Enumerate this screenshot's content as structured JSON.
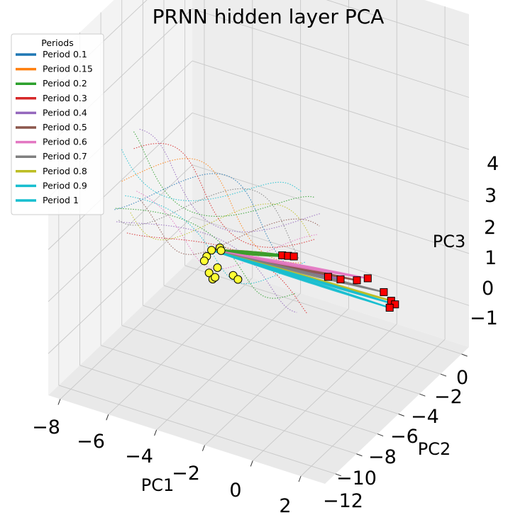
{
  "chart_data": {
    "type": "line",
    "projection": "3d",
    "title": "PRNN hidden layer PCA",
    "xlabel": "PC1",
    "ylabel": "PC2",
    "zlabel": "PC3",
    "x_ticks": [
      "−8",
      "−6",
      "−4",
      "−2",
      "0",
      "2"
    ],
    "y_ticks": [
      "0",
      "−2",
      "−4",
      "−6",
      "−8",
      "−10",
      "−12"
    ],
    "z_ticks": [
      "−1",
      "0",
      "1",
      "2",
      "3",
      "4"
    ],
    "grid": true,
    "legend": {
      "title": "Periods",
      "placement": "top-left",
      "entries": [
        {
          "label": "Period 0.1",
          "color": "#1f77b4"
        },
        {
          "label": "Period 0.15",
          "color": "#ff7f0e"
        },
        {
          "label": "Period 0.2",
          "color": "#2ca02c"
        },
        {
          "label": "Period 0.3",
          "color": "#d62728"
        },
        {
          "label": "Period 0.4",
          "color": "#9467bd"
        },
        {
          "label": "Period 0.5",
          "color": "#8c564b"
        },
        {
          "label": "Period 0.6",
          "color": "#e377c2"
        },
        {
          "label": "Period 0.7",
          "color": "#7f7f7f"
        },
        {
          "label": "Period 0.8",
          "color": "#bcbd22"
        },
        {
          "label": "Period 0.9",
          "color": "#17becf"
        },
        {
          "label": "Period 1",
          "color": "#17becf"
        }
      ]
    },
    "trajectories": [
      {
        "name": "Period 0.1",
        "color": "#1f77b4",
        "start": [
          -4.6,
          -5.6,
          0.3
        ],
        "end": [
          -0.7,
          -3.4,
          1.2
        ]
      },
      {
        "name": "Period 0.15",
        "color": "#ff7f0e",
        "start": [
          -4.6,
          -5.6,
          0.3
        ],
        "end": [
          -0.5,
          -3.5,
          1.2
        ]
      },
      {
        "name": "Period 0.2",
        "color": "#2ca02c",
        "start": [
          -4.6,
          -5.6,
          0.3
        ],
        "end": [
          -0.3,
          -3.6,
          1.2
        ]
      },
      {
        "name": "Period 0.3",
        "color": "#d62728",
        "start": [
          -4.6,
          -5.6,
          0.3
        ],
        "end": [
          1.6,
          -2.5,
          1.3
        ]
      },
      {
        "name": "Period 0.4",
        "color": "#9467bd",
        "start": [
          -4.6,
          -5.6,
          0.3
        ],
        "end": [
          1.9,
          -3.0,
          1.2
        ]
      },
      {
        "name": "Period 0.5",
        "color": "#8c564b",
        "start": [
          -4.6,
          -5.6,
          0.3
        ],
        "end": [
          2.1,
          -4.1,
          1.0
        ]
      },
      {
        "name": "Period 0.6",
        "color": "#e377c2",
        "start": [
          -4.6,
          -5.6,
          0.3
        ],
        "end": [
          2.2,
          -4.9,
          0.9
        ]
      },
      {
        "name": "Period 0.7",
        "color": "#7f7f7f",
        "start": [
          -4.6,
          -5.6,
          0.3
        ],
        "end": [
          2.3,
          -6.2,
          0.4
        ]
      },
      {
        "name": "Period 0.8",
        "color": "#bcbd22",
        "start": [
          -4.6,
          -5.6,
          0.3
        ],
        "end": [
          2.3,
          -6.9,
          0.1
        ]
      },
      {
        "name": "Period 0.9",
        "color": "#17becf",
        "start": [
          -4.6,
          -5.6,
          0.3
        ],
        "end": [
          2.2,
          -7.5,
          -0.1
        ]
      },
      {
        "name": "Period 1",
        "color": "#17becf",
        "start": [
          -4.6,
          -5.6,
          0.3
        ],
        "end": [
          1.8,
          -7.9,
          -0.3
        ]
      }
    ],
    "start_marker": {
      "shape": "circle",
      "color": "#ffff33"
    },
    "end_marker": {
      "shape": "square",
      "color": "#ff0000"
    }
  }
}
